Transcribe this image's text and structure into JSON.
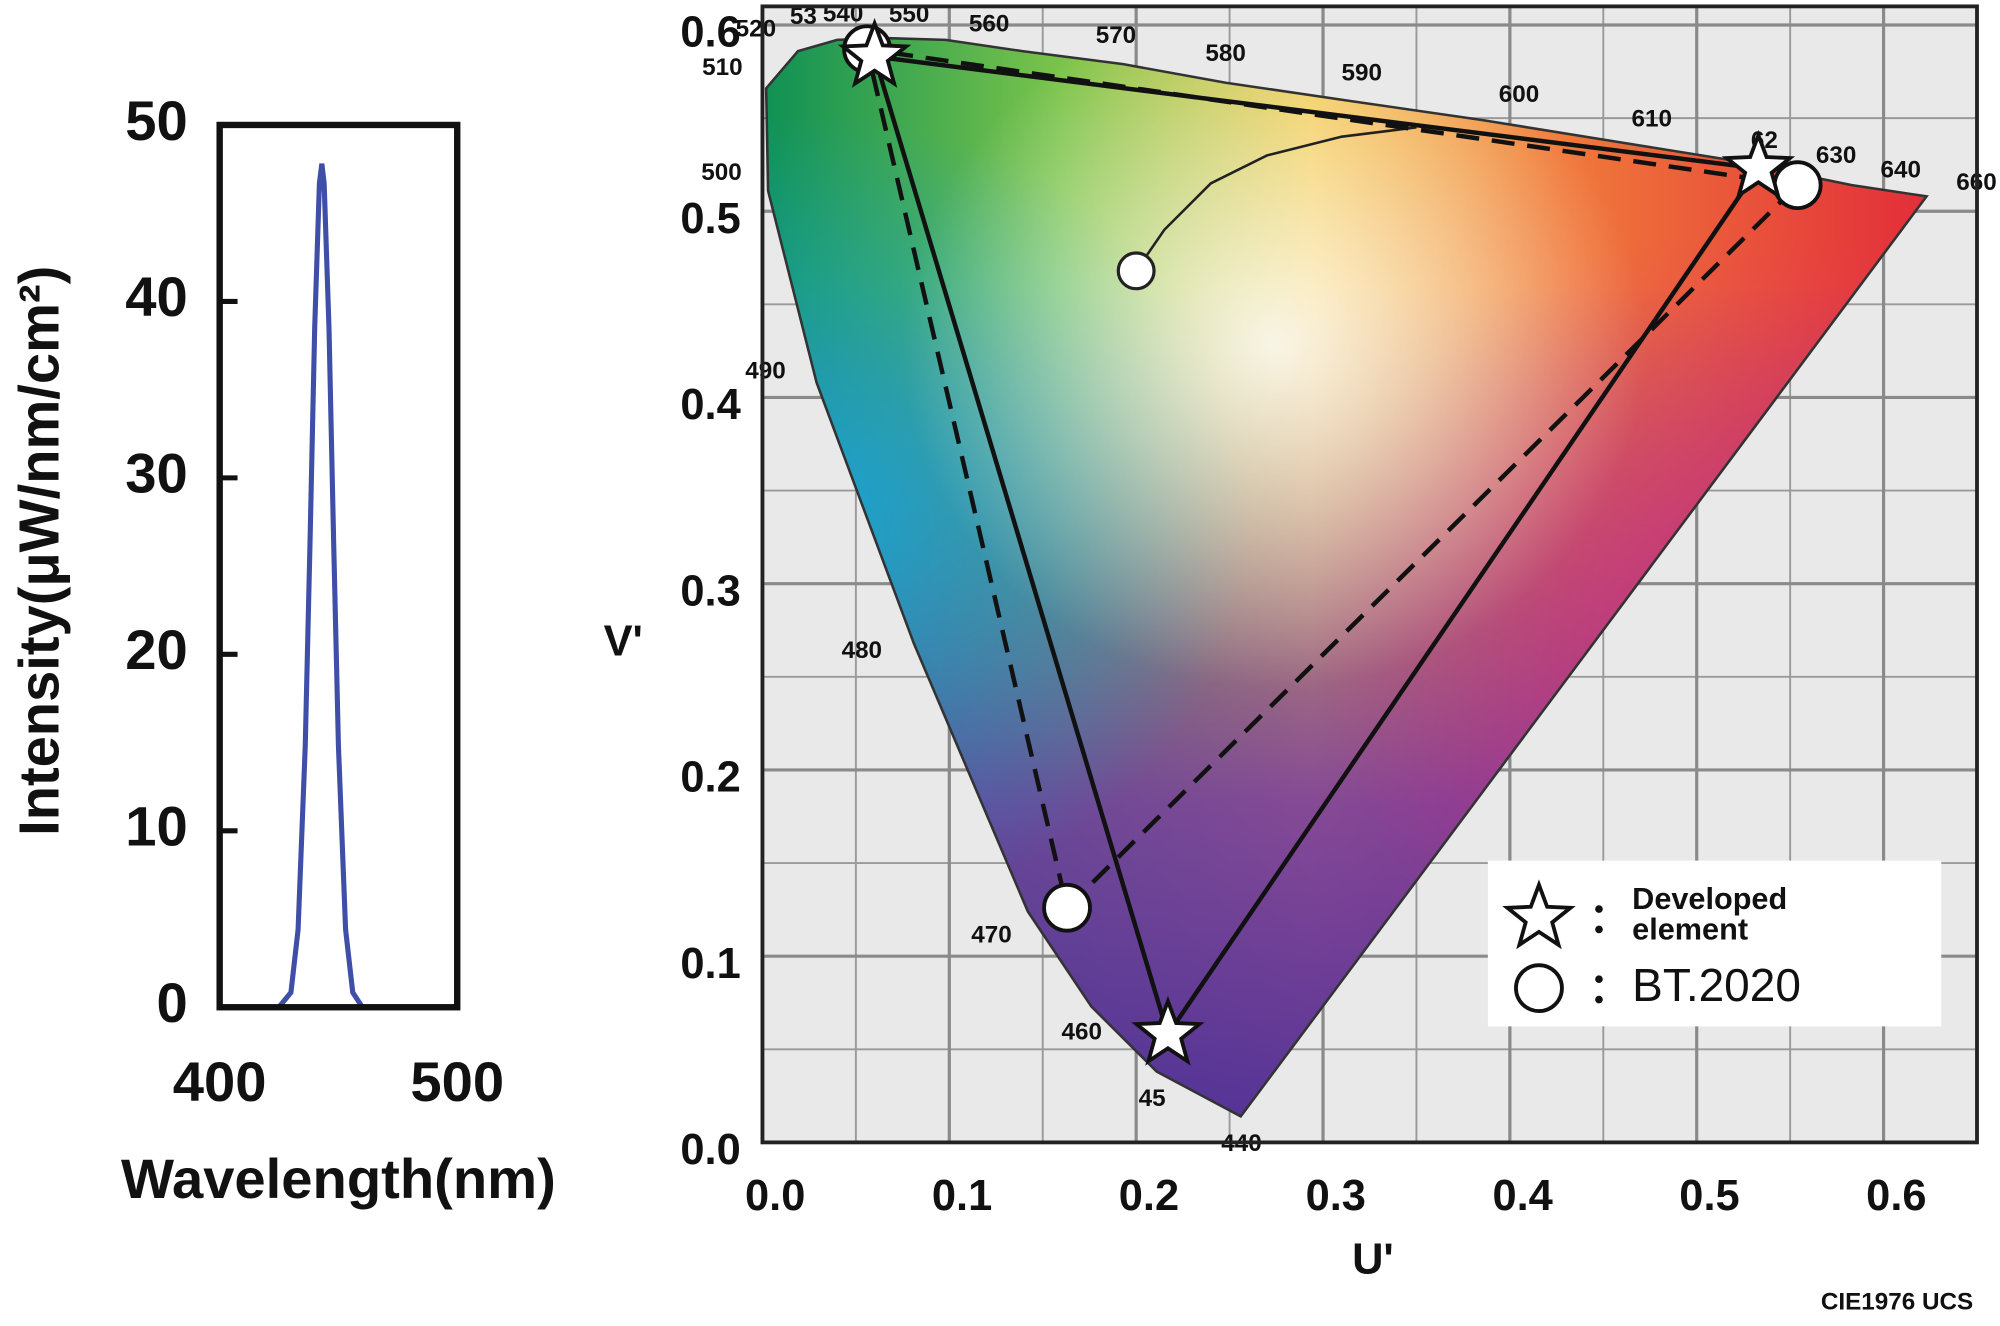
{
  "chart_data": [
    {
      "type": "line",
      "xlabel": "Wavelength(nm)",
      "ylabel": "Intensity(μW/nm/cm²)",
      "x": [
        400,
        410,
        420,
        425,
        430,
        433,
        436,
        438,
        440,
        442,
        443,
        444,
        446,
        448,
        450,
        453,
        456,
        460,
        465,
        470,
        480,
        490,
        500
      ],
      "values": [
        0,
        0,
        0,
        0.02,
        0.84,
        4.4,
        14.8,
        26.2,
        38.5,
        46.7,
        47.8,
        46.7,
        38.5,
        26.2,
        14.8,
        4.4,
        0.84,
        0.02,
        0,
        0,
        0,
        0,
        0
      ],
      "color": "#3f4fa8",
      "xlim": [
        400,
        500
      ],
      "ylim": [
        0,
        50
      ],
      "xticks": [
        400,
        500
      ],
      "yticks": [
        0,
        10,
        20,
        30,
        40,
        50
      ]
    },
    {
      "type": "cie",
      "xlabel": "U'",
      "ylabel": "V'",
      "caption": "CIE1976 UCS",
      "xlim": [
        0,
        0.65
      ],
      "ylim": [
        0,
        0.61
      ],
      "xticks": [
        {
          "value": 0,
          "label": "0.0"
        },
        0.1,
        0.2,
        0.3,
        0.4,
        0.5,
        0.6
      ],
      "yticks": [
        {
          "value": 0,
          "label": "0.0"
        },
        0.1,
        0.2,
        0.3,
        0.4,
        0.5,
        0.6
      ],
      "xminor": [
        0.05,
        0.15,
        0.25,
        0.35,
        0.45,
        0.55
      ],
      "yminor": [
        0.05,
        0.15,
        0.25,
        0.35,
        0.45,
        0.55
      ],
      "grid": true,
      "spectral_locus": {
        "labels": [
          "440",
          "45",
          "460",
          "470",
          "480",
          "490",
          "500",
          "510",
          "520",
          "53",
          "540",
          "550",
          "560",
          "570",
          "580",
          "590",
          "600",
          "610",
          "62",
          "630",
          "640",
          "660"
        ],
        "x": [
          0.256,
          0.211,
          0.176,
          0.142,
          0.081,
          0.029,
          0.003,
          0.002,
          0.019,
          0.04,
          0.064,
          0.098,
          0.139,
          0.193,
          0.248,
          0.316,
          0.385,
          0.453,
          0.515,
          0.549,
          0.583,
          0.623
        ],
        "values": [
          0.014,
          0.038,
          0.073,
          0.124,
          0.268,
          0.408,
          0.511,
          0.566,
          0.586,
          0.592,
          0.593,
          0.592,
          0.586,
          0.579,
          0.569,
          0.559,
          0.549,
          0.538,
          0.528,
          0.521,
          0.514,
          0.508
        ]
      },
      "planckian_locus": {
        "marker": "circle",
        "x": [
          0.2,
          0.215,
          0.24,
          0.27,
          0.31,
          0.35
        ],
        "values": [
          0.468,
          0.49,
          0.515,
          0.53,
          0.54,
          0.545
        ]
      },
      "series": [
        {
          "name": "BT.2020",
          "marker": "circle",
          "line": "dashed",
          "color": "#111111",
          "x": [
            0.554,
            0.056,
            0.163
          ],
          "values": [
            0.514,
            0.587,
            0.126
          ]
        },
        {
          "name": "Developed element",
          "marker": "star",
          "line": "solid",
          "color": "#111111",
          "x": [
            0.533,
            0.06,
            0.217
          ],
          "values": [
            0.523,
            0.583,
            0.058
          ]
        }
      ]
    }
  ]
}
